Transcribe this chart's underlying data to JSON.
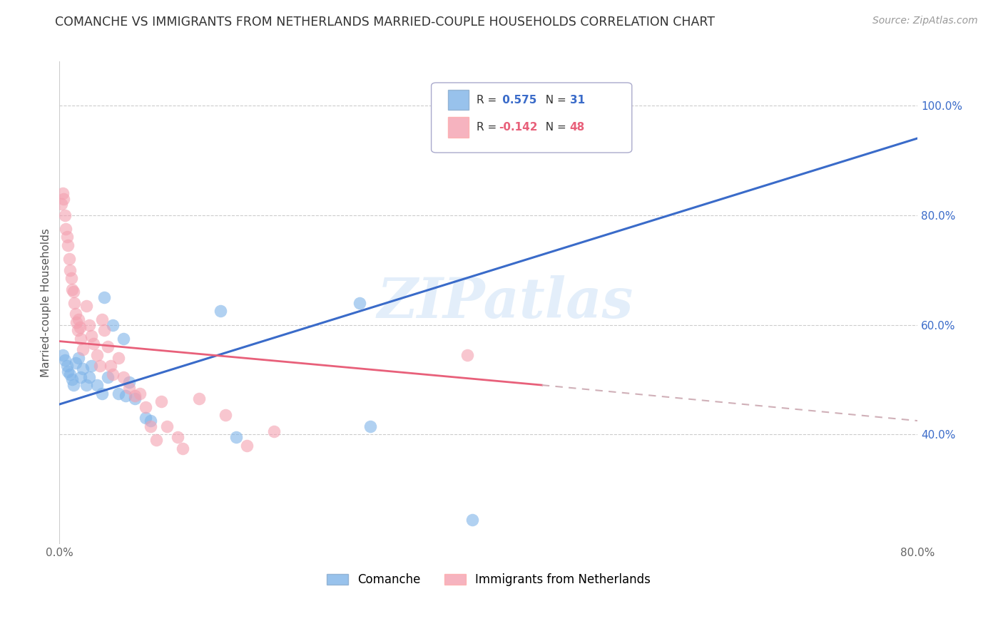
{
  "title": "COMANCHE VS IMMIGRANTS FROM NETHERLANDS MARRIED-COUPLE HOUSEHOLDS CORRELATION CHART",
  "source": "Source: ZipAtlas.com",
  "ylabel": "Married-couple Households",
  "xlim": [
    0.0,
    0.8
  ],
  "ylim": [
    0.2,
    1.08
  ],
  "xticks": [
    0.0,
    0.1,
    0.2,
    0.3,
    0.4,
    0.5,
    0.6,
    0.7,
    0.8
  ],
  "xticklabels": [
    "0.0%",
    "",
    "",
    "",
    "",
    "",
    "",
    "",
    "80.0%"
  ],
  "yticks_right": [
    0.4,
    0.6,
    0.8,
    1.0
  ],
  "ytick_labels_right": [
    "40.0%",
    "60.0%",
    "80.0%",
    "100.0%"
  ],
  "R_blue": 0.575,
  "N_blue": 31,
  "R_pink": -0.142,
  "N_pink": 48,
  "blue_color": "#7EB3E8",
  "pink_color": "#F4A0B0",
  "blue_line_color": "#3A6BC9",
  "pink_line_color": "#E8607A",
  "pink_dashed_color": "#D0B0B8",
  "blue_scatter": [
    [
      0.003,
      0.545
    ],
    [
      0.005,
      0.535
    ],
    [
      0.007,
      0.525
    ],
    [
      0.008,
      0.515
    ],
    [
      0.01,
      0.51
    ],
    [
      0.012,
      0.5
    ],
    [
      0.013,
      0.49
    ],
    [
      0.015,
      0.53
    ],
    [
      0.018,
      0.54
    ],
    [
      0.02,
      0.505
    ],
    [
      0.022,
      0.52
    ],
    [
      0.025,
      0.49
    ],
    [
      0.028,
      0.505
    ],
    [
      0.03,
      0.525
    ],
    [
      0.035,
      0.49
    ],
    [
      0.04,
      0.475
    ],
    [
      0.042,
      0.65
    ],
    [
      0.045,
      0.505
    ],
    [
      0.05,
      0.6
    ],
    [
      0.055,
      0.475
    ],
    [
      0.06,
      0.575
    ],
    [
      0.062,
      0.47
    ],
    [
      0.065,
      0.495
    ],
    [
      0.07,
      0.465
    ],
    [
      0.08,
      0.43
    ],
    [
      0.085,
      0.425
    ],
    [
      0.15,
      0.625
    ],
    [
      0.165,
      0.395
    ],
    [
      0.28,
      0.64
    ],
    [
      0.29,
      0.415
    ],
    [
      0.385,
      0.245
    ]
  ],
  "pink_scatter": [
    [
      0.002,
      0.82
    ],
    [
      0.003,
      0.84
    ],
    [
      0.004,
      0.83
    ],
    [
      0.005,
      0.8
    ],
    [
      0.006,
      0.775
    ],
    [
      0.007,
      0.76
    ],
    [
      0.008,
      0.745
    ],
    [
      0.009,
      0.72
    ],
    [
      0.01,
      0.7
    ],
    [
      0.011,
      0.685
    ],
    [
      0.012,
      0.665
    ],
    [
      0.013,
      0.66
    ],
    [
      0.014,
      0.64
    ],
    [
      0.015,
      0.62
    ],
    [
      0.016,
      0.605
    ],
    [
      0.017,
      0.59
    ],
    [
      0.018,
      0.61
    ],
    [
      0.019,
      0.595
    ],
    [
      0.02,
      0.575
    ],
    [
      0.022,
      0.555
    ],
    [
      0.025,
      0.635
    ],
    [
      0.028,
      0.6
    ],
    [
      0.03,
      0.58
    ],
    [
      0.032,
      0.565
    ],
    [
      0.035,
      0.545
    ],
    [
      0.038,
      0.525
    ],
    [
      0.04,
      0.61
    ],
    [
      0.042,
      0.59
    ],
    [
      0.045,
      0.56
    ],
    [
      0.048,
      0.525
    ],
    [
      0.05,
      0.51
    ],
    [
      0.055,
      0.54
    ],
    [
      0.06,
      0.505
    ],
    [
      0.065,
      0.485
    ],
    [
      0.07,
      0.47
    ],
    [
      0.075,
      0.475
    ],
    [
      0.08,
      0.45
    ],
    [
      0.085,
      0.415
    ],
    [
      0.09,
      0.39
    ],
    [
      0.095,
      0.46
    ],
    [
      0.1,
      0.415
    ],
    [
      0.11,
      0.395
    ],
    [
      0.115,
      0.375
    ],
    [
      0.13,
      0.465
    ],
    [
      0.155,
      0.435
    ],
    [
      0.175,
      0.38
    ],
    [
      0.2,
      0.405
    ],
    [
      0.38,
      0.545
    ]
  ],
  "blue_trendline": [
    [
      0.0,
      0.455
    ],
    [
      0.8,
      0.94
    ]
  ],
  "pink_trendline_solid": [
    [
      0.0,
      0.57
    ],
    [
      0.45,
      0.49
    ]
  ],
  "pink_trendline_dashed": [
    [
      0.45,
      0.49
    ],
    [
      0.8,
      0.425
    ]
  ],
  "legend_R_label": "R = ",
  "legend_N_label": "N = "
}
